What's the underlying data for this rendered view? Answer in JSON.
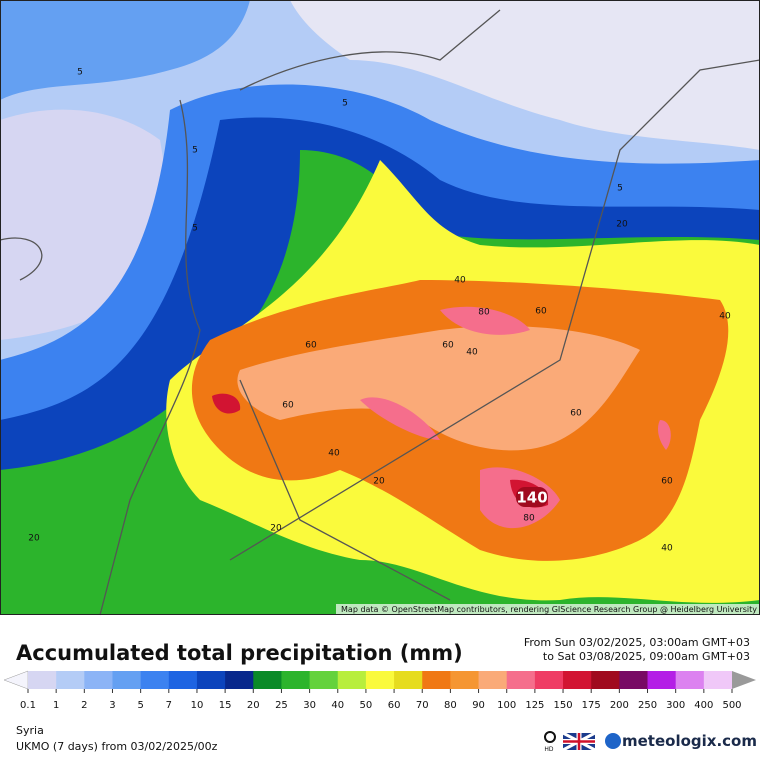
{
  "map": {
    "attribution": "Map data © OpenStreetMap contributors, rendering GIScience Research Group @ Heidelberg University",
    "contour_labels": [
      5,
      5,
      5,
      5,
      5,
      20,
      40,
      40,
      80,
      60,
      60,
      60,
      40,
      60,
      60,
      40,
      20,
      140,
      80,
      60,
      40,
      20,
      20
    ]
  },
  "header": {
    "title": "Accumulated total precipitation (mm)",
    "period_from": "From Sun 03/02/2025, 03:00am GMT+03",
    "period_to": "to Sat 03/08/2025, 09:00am GMT+03"
  },
  "legend": {
    "levels": [
      0.1,
      1,
      2,
      3,
      5,
      7,
      10,
      15,
      20,
      25,
      30,
      40,
      50,
      60,
      70,
      80,
      90,
      100,
      125,
      150,
      175,
      200,
      250,
      300,
      400,
      500
    ],
    "colors": [
      "#f4f4fc",
      "#d6d6f2",
      "#b4ccf6",
      "#8cb4f6",
      "#64a0f2",
      "#3c82f0",
      "#1e64e2",
      "#0c44bc",
      "#08288c",
      "#0a8a28",
      "#2cb42c",
      "#64d23c",
      "#b8ee3c",
      "#fafa3c",
      "#e6dc1e",
      "#f07814",
      "#f59632",
      "#faaa78",
      "#f56e8c",
      "#ef3c64",
      "#d21432",
      "#a00a1e",
      "#780a64",
      "#b41ee6",
      "#dc82f0",
      "#f0c8f8",
      "#d2d2d2",
      "#9a9a9a"
    ]
  },
  "footer": {
    "region": "Syria",
    "model": "UKMO (7 days)  from  03/02/2025/00z",
    "hd": "HD",
    "brand": "meteologix.com"
  }
}
